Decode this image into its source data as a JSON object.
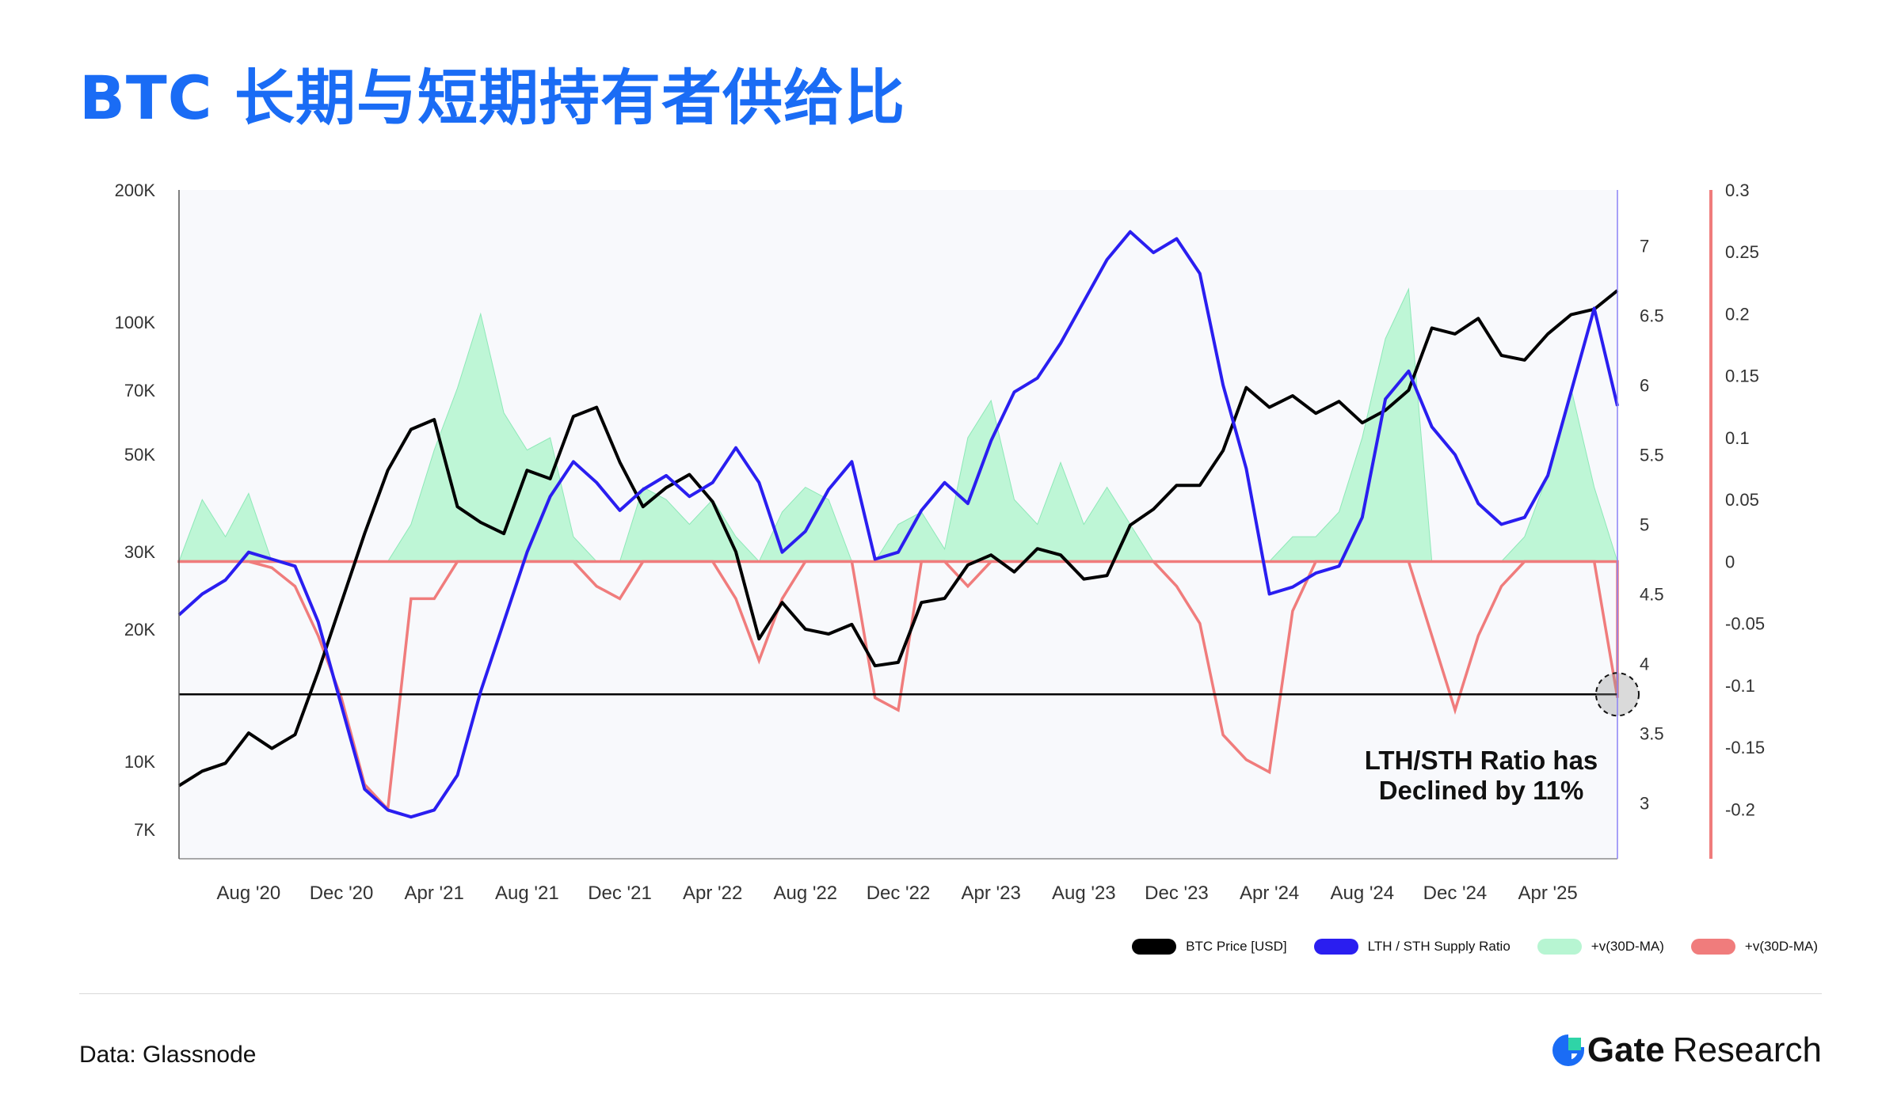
{
  "title": "BTC 长期与短期持有者供给比",
  "source": "Data: Glassnode",
  "logo": {
    "brand": "Gate",
    "sub": "Research"
  },
  "colors": {
    "title": "#1a6cf5",
    "price": "#000000",
    "ratio": "#2a1ef0",
    "pos": "#9df3c4",
    "neg": "#f07c7c"
  },
  "chart_data": {
    "type": "line",
    "x_ticks": [
      "Aug '20",
      "Dec '20",
      "Apr '21",
      "Aug '21",
      "Dec '21",
      "Apr '22",
      "Aug '22",
      "Dec '22",
      "Apr '23",
      "Aug '23",
      "Dec '23",
      "Apr '24",
      "Aug '24",
      "Dec '24",
      "Apr '25"
    ],
    "x_range": [
      "2020-05",
      "2025-07"
    ],
    "y_left": {
      "scale": "log",
      "range": [
        6000,
        200000
      ],
      "ticks": [
        "200K",
        "100K",
        "70K",
        "50K",
        "30K",
        "20K",
        "10K",
        "7K"
      ],
      "tick_values": [
        200000,
        100000,
        70000,
        50000,
        30000,
        20000,
        10000,
        7000
      ]
    },
    "y_ratio": {
      "range": [
        2.6,
        7.4
      ],
      "ticks": [
        "7",
        "6.5",
        "6",
        "5.5",
        "5",
        "4.5",
        "4",
        "3.5",
        "3"
      ],
      "tick_values": [
        7,
        6.5,
        6,
        5.5,
        5,
        4.5,
        4,
        3.5,
        3
      ]
    },
    "y_right": {
      "range": [
        -0.24,
        0.3
      ],
      "ticks": [
        "0.3",
        "0.25",
        "0.2",
        "0.15",
        "0.1",
        "0.05",
        "0",
        "-0.05",
        "-0.1",
        "-0.15",
        "-0.2"
      ],
      "tick_values": [
        0.3,
        0.25,
        0.2,
        0.15,
        0.1,
        0.05,
        0,
        -0.05,
        -0.1,
        -0.15,
        -0.2
      ]
    },
    "series": [
      {
        "name": "BTC Price [USD]",
        "axis": "left",
        "color": "#000000",
        "points": [
          [
            "2020-05",
            8800
          ],
          [
            "2020-06",
            9500
          ],
          [
            "2020-07",
            9900
          ],
          [
            "2020-08",
            11600
          ],
          [
            "2020-09",
            10700
          ],
          [
            "2020-10",
            11500
          ],
          [
            "2020-11",
            16000
          ],
          [
            "2020-12",
            23000
          ],
          [
            "2021-01",
            33000
          ],
          [
            "2021-02",
            46000
          ],
          [
            "2021-03",
            57000
          ],
          [
            "2021-04",
            60000
          ],
          [
            "2021-05",
            38000
          ],
          [
            "2021-06",
            35000
          ],
          [
            "2021-07",
            33000
          ],
          [
            "2021-08",
            46000
          ],
          [
            "2021-09",
            44000
          ],
          [
            "2021-10",
            61000
          ],
          [
            "2021-11",
            64000
          ],
          [
            "2021-12",
            48000
          ],
          [
            "2022-01",
            38000
          ],
          [
            "2022-02",
            42000
          ],
          [
            "2022-03",
            45000
          ],
          [
            "2022-04",
            39000
          ],
          [
            "2022-05",
            30000
          ],
          [
            "2022-06",
            19000
          ],
          [
            "2022-07",
            23000
          ],
          [
            "2022-08",
            20000
          ],
          [
            "2022-09",
            19500
          ],
          [
            "2022-10",
            20500
          ],
          [
            "2022-11",
            16500
          ],
          [
            "2022-12",
            16800
          ],
          [
            "2023-01",
            23000
          ],
          [
            "2023-02",
            23500
          ],
          [
            "2023-03",
            28000
          ],
          [
            "2023-04",
            29500
          ],
          [
            "2023-05",
            27000
          ],
          [
            "2023-06",
            30500
          ],
          [
            "2023-07",
            29500
          ],
          [
            "2023-08",
            26000
          ],
          [
            "2023-09",
            26500
          ],
          [
            "2023-10",
            34500
          ],
          [
            "2023-11",
            37500
          ],
          [
            "2023-12",
            42500
          ],
          [
            "2024-01",
            42500
          ],
          [
            "2024-02",
            51000
          ],
          [
            "2024-03",
            71000
          ],
          [
            "2024-04",
            64000
          ],
          [
            "2024-05",
            68000
          ],
          [
            "2024-06",
            62000
          ],
          [
            "2024-07",
            66000
          ],
          [
            "2024-08",
            59000
          ],
          [
            "2024-09",
            63000
          ],
          [
            "2024-10",
            70000
          ],
          [
            "2024-11",
            97000
          ],
          [
            "2024-12",
            94000
          ],
          [
            "2025-01",
            102000
          ],
          [
            "2025-02",
            84000
          ],
          [
            "2025-03",
            82000
          ],
          [
            "2025-04",
            94000
          ],
          [
            "2025-05",
            104000
          ],
          [
            "2025-06",
            107000
          ],
          [
            "2025-07",
            118000
          ]
        ]
      },
      {
        "name": "LTH / STH Supply Ratio",
        "axis": "ratio",
        "color": "#2a1ef0",
        "points": [
          [
            "2020-05",
            4.35
          ],
          [
            "2020-06",
            4.5
          ],
          [
            "2020-07",
            4.6
          ],
          [
            "2020-08",
            4.8
          ],
          [
            "2020-09",
            4.75
          ],
          [
            "2020-10",
            4.7
          ],
          [
            "2020-11",
            4.3
          ],
          [
            "2020-12",
            3.7
          ],
          [
            "2021-01",
            3.1
          ],
          [
            "2021-02",
            2.95
          ],
          [
            "2021-03",
            2.9
          ],
          [
            "2021-04",
            2.95
          ],
          [
            "2021-05",
            3.2
          ],
          [
            "2021-06",
            3.8
          ],
          [
            "2021-07",
            4.3
          ],
          [
            "2021-08",
            4.8
          ],
          [
            "2021-09",
            5.2
          ],
          [
            "2021-10",
            5.45
          ],
          [
            "2021-11",
            5.3
          ],
          [
            "2021-12",
            5.1
          ],
          [
            "2022-01",
            5.25
          ],
          [
            "2022-02",
            5.35
          ],
          [
            "2022-03",
            5.2
          ],
          [
            "2022-04",
            5.3
          ],
          [
            "2022-05",
            5.55
          ],
          [
            "2022-06",
            5.3
          ],
          [
            "2022-07",
            4.8
          ],
          [
            "2022-08",
            4.95
          ],
          [
            "2022-09",
            5.25
          ],
          [
            "2022-10",
            5.45
          ],
          [
            "2022-11",
            4.75
          ],
          [
            "2022-12",
            4.8
          ],
          [
            "2023-01",
            5.1
          ],
          [
            "2023-02",
            5.3
          ],
          [
            "2023-03",
            5.15
          ],
          [
            "2023-04",
            5.6
          ],
          [
            "2023-05",
            5.95
          ],
          [
            "2023-06",
            6.05
          ],
          [
            "2023-07",
            6.3
          ],
          [
            "2023-08",
            6.6
          ],
          [
            "2023-09",
            6.9
          ],
          [
            "2023-10",
            7.1
          ],
          [
            "2023-11",
            6.95
          ],
          [
            "2023-12",
            7.05
          ],
          [
            "2024-01",
            6.8
          ],
          [
            "2024-02",
            6.0
          ],
          [
            "2024-03",
            5.4
          ],
          [
            "2024-04",
            4.5
          ],
          [
            "2024-05",
            4.55
          ],
          [
            "2024-06",
            4.65
          ],
          [
            "2024-07",
            4.7
          ],
          [
            "2024-08",
            5.05
          ],
          [
            "2024-09",
            5.9
          ],
          [
            "2024-10",
            6.1
          ],
          [
            "2024-11",
            5.7
          ],
          [
            "2024-12",
            5.5
          ],
          [
            "2025-01",
            5.15
          ],
          [
            "2025-02",
            5.0
          ],
          [
            "2025-03",
            5.05
          ],
          [
            "2025-04",
            5.35
          ],
          [
            "2025-05",
            5.95
          ],
          [
            "2025-06",
            6.55
          ],
          [
            "2025-07",
            5.85
          ]
        ]
      },
      {
        "name": "+v(30D-MA)",
        "axis": "right",
        "color": "#9df3c4",
        "points": [
          [
            "2020-05",
            0.0
          ],
          [
            "2020-06",
            0.05
          ],
          [
            "2020-07",
            0.02
          ],
          [
            "2020-08",
            0.055
          ],
          [
            "2020-09",
            0.0
          ],
          [
            "2020-10",
            0.0
          ],
          [
            "2020-11",
            0.0
          ],
          [
            "2020-12",
            0.0
          ],
          [
            "2021-01",
            0.0
          ],
          [
            "2021-02",
            0.0
          ],
          [
            "2021-03",
            0.03
          ],
          [
            "2021-04",
            0.09
          ],
          [
            "2021-05",
            0.14
          ],
          [
            "2021-06",
            0.2
          ],
          [
            "2021-07",
            0.12
          ],
          [
            "2021-08",
            0.09
          ],
          [
            "2021-09",
            0.1
          ],
          [
            "2021-10",
            0.02
          ],
          [
            "2021-11",
            0.0
          ],
          [
            "2021-12",
            0.0
          ],
          [
            "2022-01",
            0.06
          ],
          [
            "2022-02",
            0.05
          ],
          [
            "2022-03",
            0.03
          ],
          [
            "2022-04",
            0.05
          ],
          [
            "2022-05",
            0.02
          ],
          [
            "2022-06",
            0.0
          ],
          [
            "2022-07",
            0.04
          ],
          [
            "2022-08",
            0.06
          ],
          [
            "2022-09",
            0.05
          ],
          [
            "2022-10",
            0.0
          ],
          [
            "2022-11",
            0.0
          ],
          [
            "2022-12",
            0.03
          ],
          [
            "2023-01",
            0.04
          ],
          [
            "2023-02",
            0.01
          ],
          [
            "2023-03",
            0.1
          ],
          [
            "2023-04",
            0.13
          ],
          [
            "2023-05",
            0.05
          ],
          [
            "2023-06",
            0.03
          ],
          [
            "2023-07",
            0.08
          ],
          [
            "2023-08",
            0.03
          ],
          [
            "2023-09",
            0.06
          ],
          [
            "2023-10",
            0.03
          ],
          [
            "2023-11",
            0.0
          ],
          [
            "2023-12",
            0.0
          ],
          [
            "2024-01",
            0.0
          ],
          [
            "2024-02",
            0.0
          ],
          [
            "2024-03",
            0.0
          ],
          [
            "2024-04",
            0.0
          ],
          [
            "2024-05",
            0.02
          ],
          [
            "2024-06",
            0.02
          ],
          [
            "2024-07",
            0.04
          ],
          [
            "2024-08",
            0.1
          ],
          [
            "2024-09",
            0.18
          ],
          [
            "2024-10",
            0.22
          ],
          [
            "2024-11",
            0.0
          ],
          [
            "2024-12",
            0.0
          ],
          [
            "2025-01",
            0.0
          ],
          [
            "2025-02",
            0.0
          ],
          [
            "2025-03",
            0.02
          ],
          [
            "2025-04",
            0.07
          ],
          [
            "2025-05",
            0.14
          ],
          [
            "2025-06",
            0.06
          ],
          [
            "2025-07",
            0.0
          ]
        ]
      },
      {
        "name": "+v(30D-MA)",
        "axis": "right",
        "color": "#f07c7c",
        "points": [
          [
            "2020-05",
            0.0
          ],
          [
            "2020-06",
            0.0
          ],
          [
            "2020-07",
            0.0
          ],
          [
            "2020-08",
            0.0
          ],
          [
            "2020-09",
            -0.005
          ],
          [
            "2020-10",
            -0.02
          ],
          [
            "2020-11",
            -0.06
          ],
          [
            "2020-12",
            -0.11
          ],
          [
            "2021-01",
            -0.18
          ],
          [
            "2021-02",
            -0.2
          ],
          [
            "2021-03",
            -0.03
          ],
          [
            "2021-04",
            -0.03
          ],
          [
            "2021-05",
            0.0
          ],
          [
            "2021-06",
            0.0
          ],
          [
            "2021-07",
            0.0
          ],
          [
            "2021-08",
            0.0
          ],
          [
            "2021-09",
            0.0
          ],
          [
            "2021-10",
            0.0
          ],
          [
            "2021-11",
            -0.02
          ],
          [
            "2021-12",
            -0.03
          ],
          [
            "2022-01",
            0.0
          ],
          [
            "2022-02",
            0.0
          ],
          [
            "2022-03",
            0.0
          ],
          [
            "2022-04",
            0.0
          ],
          [
            "2022-05",
            -0.03
          ],
          [
            "2022-06",
            -0.08
          ],
          [
            "2022-07",
            -0.03
          ],
          [
            "2022-08",
            0.0
          ],
          [
            "2022-09",
            0.0
          ],
          [
            "2022-10",
            0.0
          ],
          [
            "2022-11",
            -0.11
          ],
          [
            "2022-12",
            -0.12
          ],
          [
            "2023-01",
            0.0
          ],
          [
            "2023-02",
            0.0
          ],
          [
            "2023-03",
            -0.02
          ],
          [
            "2023-04",
            0.0
          ],
          [
            "2023-05",
            0.0
          ],
          [
            "2023-06",
            0.0
          ],
          [
            "2023-07",
            0.0
          ],
          [
            "2023-08",
            0.0
          ],
          [
            "2023-09",
            0.0
          ],
          [
            "2023-10",
            0.0
          ],
          [
            "2023-11",
            0.0
          ],
          [
            "2023-12",
            -0.02
          ],
          [
            "2024-01",
            -0.05
          ],
          [
            "2024-02",
            -0.14
          ],
          [
            "2024-03",
            -0.16
          ],
          [
            "2024-04",
            -0.17
          ],
          [
            "2024-05",
            -0.04
          ],
          [
            "2024-06",
            0.0
          ],
          [
            "2024-07",
            0.0
          ],
          [
            "2024-08",
            0.0
          ],
          [
            "2024-09",
            0.0
          ],
          [
            "2024-10",
            0.0
          ],
          [
            "2024-11",
            -0.06
          ],
          [
            "2024-12",
            -0.12
          ],
          [
            "2025-01",
            -0.06
          ],
          [
            "2025-02",
            -0.02
          ],
          [
            "2025-03",
            0.0
          ],
          [
            "2025-04",
            0.0
          ],
          [
            "2025-05",
            0.0
          ],
          [
            "2025-06",
            0.0
          ],
          [
            "2025-07",
            -0.11
          ]
        ]
      }
    ],
    "reference_line": {
      "axis": "ratio",
      "value": 3.78
    },
    "annotation": {
      "line1": "LTH/STH Ratio has",
      "line2": "Declined by 11%"
    },
    "legend": {
      "placement": "bottom-right",
      "items": [
        "BTC Price [USD]",
        "LTH / STH Supply Ratio",
        "+v(30D-MA)",
        "+v(30D-MA)"
      ]
    },
    "grid": false
  }
}
